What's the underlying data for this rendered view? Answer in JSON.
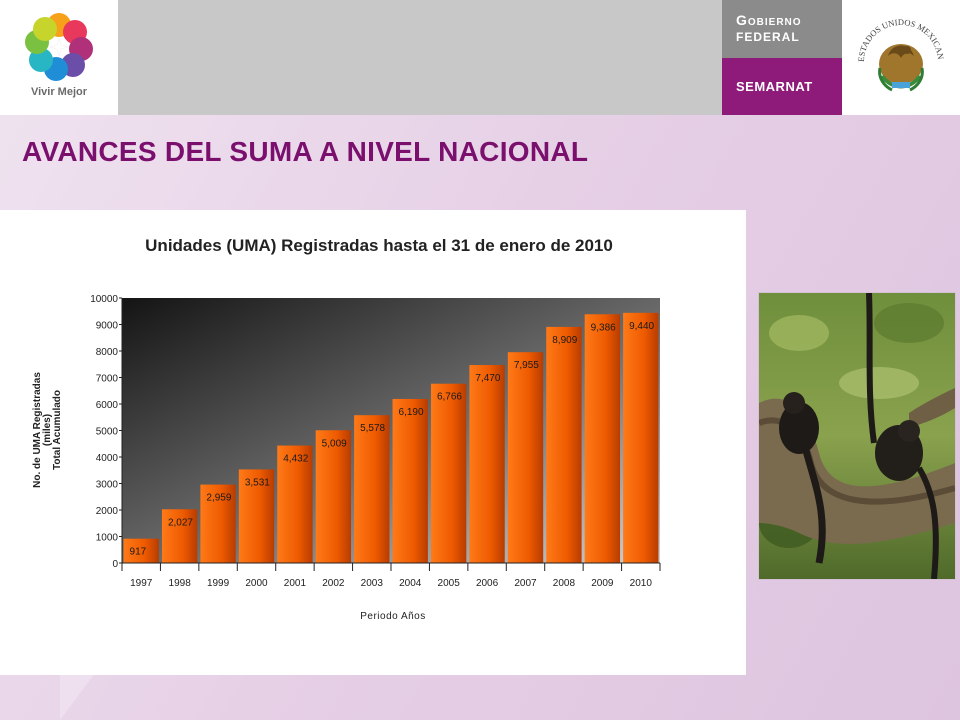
{
  "header": {
    "logo_text": "Vivir Mejor",
    "gob_line1": "Gobierno",
    "gob_line2": "FEDERAL",
    "semarnat": "SEMARNAT",
    "seal_text": "ESTADOS UNIDOS MEXICANOS"
  },
  "page": {
    "title": "AVANCES DEL SUMA A NIVEL NACIONAL"
  },
  "colors": {
    "title": "#7a0f6d",
    "semarnat_bg": "#8e1a79",
    "bar_top": "#ff6a00",
    "bar_bottom": "#c94100"
  },
  "chart_data": {
    "type": "bar",
    "title": "Unidades (UMA) Registradas hasta el 31 de enero de 2010",
    "xlabel": "Periodo Años",
    "ylabel_line1": "No. de UMA Registradas",
    "ylabel_line2": "(miles)",
    "ylabel_line3": "Total Acumulado",
    "categories": [
      "1997",
      "1998",
      "1999",
      "2000",
      "2001",
      "2002",
      "2003",
      "2004",
      "2005",
      "2006",
      "2007",
      "2008",
      "2009",
      "2010"
    ],
    "values": [
      917,
      2027,
      2959,
      3531,
      4432,
      5009,
      5578,
      6190,
      6766,
      7470,
      7955,
      8909,
      9386,
      9440
    ],
    "value_labels": [
      "917",
      "2,027",
      "2,959",
      "3,531",
      "4,432",
      "5,009",
      "5,578",
      "6,190",
      "6,766",
      "7,470",
      "7,955",
      "8,909",
      "9,386",
      "9,440"
    ],
    "yticks": [
      "0",
      "1000",
      "2000",
      "3000",
      "4000",
      "5000",
      "6000",
      "7000",
      "8000",
      "9000",
      "10000"
    ],
    "ylim": [
      0,
      10000
    ],
    "grid": false,
    "legend": "none"
  }
}
